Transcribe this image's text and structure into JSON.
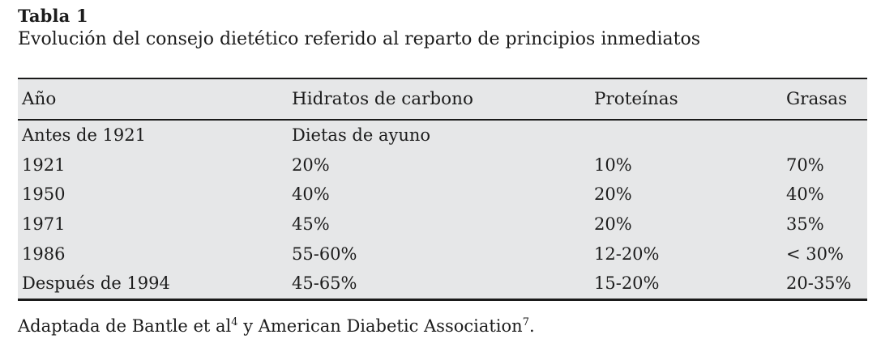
{
  "caption": {
    "label": "Tabla 1",
    "title": "Evolución del consejo dietético referido al reparto de principios inmediatos"
  },
  "table": {
    "columns": [
      "Año",
      "Hidratos de carbono",
      "Proteínas",
      "Grasas"
    ],
    "rows": [
      {
        "cells": [
          "Antes de 1921",
          "Dietas de ayuno",
          "",
          ""
        ]
      },
      {
        "cells": [
          "1921",
          "20%",
          "10%",
          "70%"
        ]
      },
      {
        "cells": [
          "1950",
          "40%",
          "20%",
          "40%"
        ]
      },
      {
        "cells": [
          "1971",
          "45%",
          "20%",
          "35%"
        ]
      },
      {
        "cells": [
          "1986",
          "55-60%",
          "12-20%",
          "< 30%"
        ]
      },
      {
        "cells": [
          "Después de 1994",
          "45-65%",
          "15-20%",
          "20-35%"
        ]
      }
    ]
  },
  "footnote": {
    "part1": "Adaptada de Bantle et al",
    "sup1": "4",
    "part2": " y American Diabetic Association",
    "sup2": "7",
    "part3": "."
  },
  "colors": {
    "table_background": "#e6e7e8",
    "border": "#1a1a1a",
    "text": "#1c1c1c",
    "page_background": "#ffffff"
  }
}
